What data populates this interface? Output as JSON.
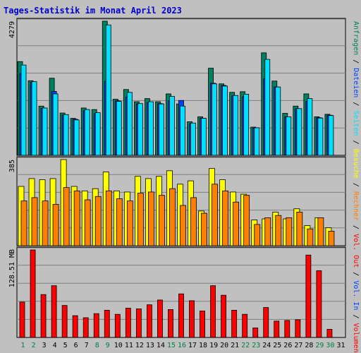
{
  "chart_data": {
    "type": "bar",
    "title": "Tages-Statistik im Monat April 2023",
    "x": [
      "1",
      "2",
      "3",
      "4",
      "5",
      "6",
      "7",
      "8",
      "9",
      "10",
      "11",
      "12",
      "13",
      "14",
      "15",
      "16",
      "17",
      "18",
      "19",
      "20",
      "21",
      "22",
      "23",
      "24",
      "25",
      "26",
      "27",
      "28",
      "29",
      "30",
      "31"
    ],
    "weekend_days": [
      "1",
      "2",
      "8",
      "9",
      "15",
      "16",
      "22",
      "23",
      "29",
      "30"
    ],
    "colors": {
      "anfragen": "#008060",
      "dateien": "#0040ff",
      "seiten": "#00e0ff",
      "besuche": "#ffff00",
      "rechner": "#ff8000",
      "volumen": "#ff0000",
      "weekday_label": "#000000",
      "weekend_label": "#008040"
    },
    "panel_top": {
      "max_label": "4279",
      "ylim": [
        0,
        4279
      ],
      "series": [
        {
          "name": "Anfragen",
          "values": [
            2990,
            2380,
            1570,
            2460,
            1350,
            1180,
            1510,
            1460,
            4279,
            1790,
            2100,
            1710,
            1810,
            1710,
            1960,
            1640,
            1070,
            1230,
            2780,
            2280,
            2010,
            2030,
            900,
            3270,
            2370,
            1340,
            1570,
            1960,
            1230,
            1310,
            0
          ]
        },
        {
          "name": "Dateien",
          "values": [
            2610,
            2330,
            1500,
            2040,
            1290,
            1150,
            1420,
            1330,
            2360,
            1740,
            1860,
            1640,
            1680,
            1650,
            1740,
            1750,
            1010,
            1180,
            2300,
            2230,
            1900,
            1870,
            870,
            2440,
            2180,
            1230,
            1490,
            1720,
            1200,
            1280,
            0
          ]
        },
        {
          "name": "Seiten",
          "values": [
            2880,
            2350,
            1510,
            1960,
            1300,
            1130,
            1460,
            1360,
            4160,
            1720,
            2010,
            1650,
            1710,
            1640,
            1880,
            1570,
            1030,
            1180,
            2280,
            2210,
            1910,
            1950,
            880,
            3060,
            2180,
            1230,
            1490,
            1810,
            1190,
            1270,
            0
          ]
        }
      ]
    },
    "panel_middle": {
      "max_label": "385",
      "ylim": [
        0,
        385
      ],
      "series": [
        {
          "name": "Besuche",
          "values": [
            265,
            300,
            295,
            300,
            385,
            265,
            245,
            255,
            330,
            245,
            240,
            310,
            300,
            310,
            335,
            275,
            290,
            155,
            345,
            295,
            240,
            230,
            115,
            120,
            150,
            120,
            165,
            90,
            125,
            80,
            0
          ]
        },
        {
          "name": "Rechner",
          "values": [
            200,
            215,
            200,
            185,
            260,
            245,
            205,
            220,
            245,
            210,
            200,
            235,
            240,
            225,
            255,
            180,
            215,
            145,
            275,
            245,
            195,
            225,
            95,
            125,
            135,
            125,
            150,
            75,
            125,
            65,
            0
          ]
        }
      ]
    },
    "panel_bottom": {
      "max_label": "128.51 MB",
      "ylim": [
        0,
        128.51
      ],
      "series": [
        {
          "name": "Volumen",
          "values": [
            52,
            128.51,
            63,
            76,
            47,
            32,
            29,
            35,
            40,
            34,
            43,
            42,
            48,
            55,
            41,
            64,
            54,
            39,
            76,
            62,
            40,
            34,
            14,
            44,
            24,
            25,
            26,
            121,
            98,
            12,
            0
          ]
        }
      ]
    },
    "legend_right": [
      {
        "text": "Anfragen",
        "color": "#008060"
      },
      {
        "text": "Dateien",
        "color": "#0040ff"
      },
      {
        "text": "Seiten",
        "color": "#00e0ff"
      },
      {
        "text": "Besuche",
        "color": "#ffff00"
      },
      {
        "text": "Rechner",
        "color": "#ff8000"
      },
      {
        "text": "Vol. Out",
        "color": "#ff0000"
      },
      {
        "text": "Vol. In",
        "color": "#0040ff"
      },
      {
        "text": "Volumen",
        "color": "#ff0000"
      }
    ],
    "legend_separator": " / "
  }
}
